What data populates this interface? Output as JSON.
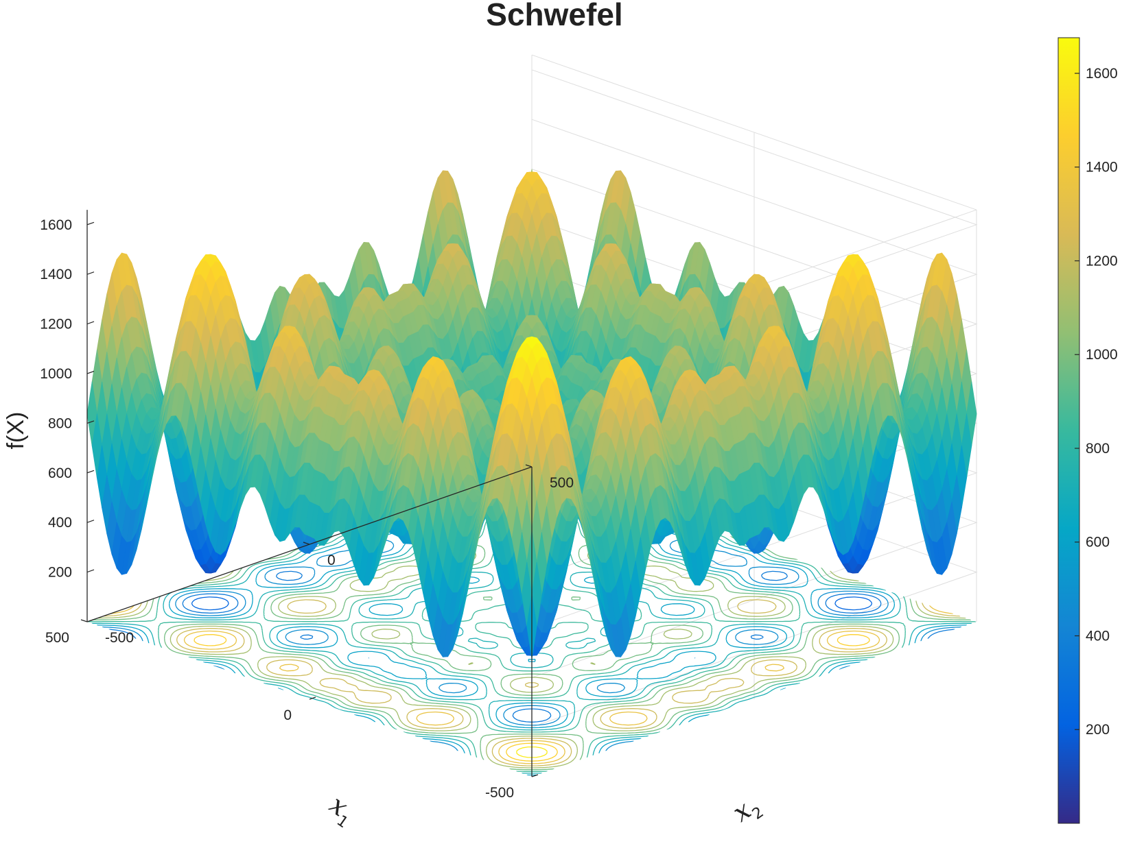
{
  "chart_data": {
    "type": "surface",
    "function": "Schwefel",
    "title": "Schwefel",
    "xlabel": "x",
    "xlabel_sub": "1",
    "ylabel": "x",
    "ylabel_sub": "2",
    "zlabel": "f(X)",
    "x_range": [
      -500,
      500
    ],
    "y_range": [
      -500,
      500
    ],
    "x_ticks": [
      "500",
      "0",
      "-500"
    ],
    "y_ticks": [
      "-500",
      "0",
      "500"
    ],
    "z_range": [
      0,
      1700
    ],
    "z_ticks": [
      "200",
      "400",
      "600",
      "800",
      "1000",
      "1200",
      "1400",
      "1600"
    ],
    "contour_projection": true,
    "colormap": "parula",
    "colorbar": {
      "range": [
        0,
        1676
      ],
      "ticks": [
        "200",
        "400",
        "600",
        "800",
        "1000",
        "1200",
        "1400",
        "1600"
      ]
    },
    "grid": true
  },
  "colors": {
    "parula": [
      "#352a87",
      "#0363e1",
      "#1485d4",
      "#06a7c6",
      "#38b99e",
      "#92bf73",
      "#d9ba56",
      "#fcce2e",
      "#f9fb0e"
    ],
    "axis": "#262626",
    "grid": "#dedede"
  }
}
